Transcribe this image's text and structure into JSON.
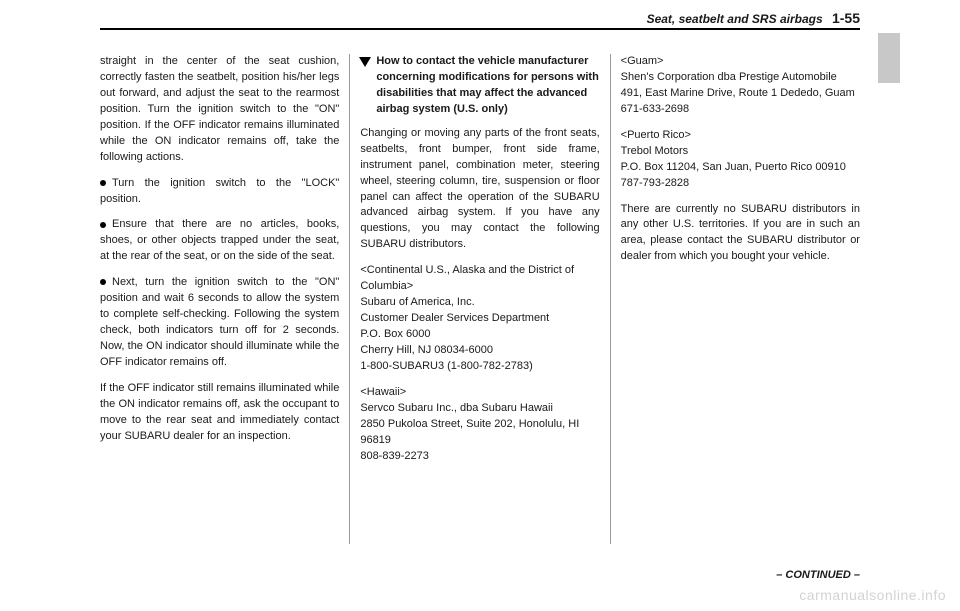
{
  "header": {
    "section": "Seat, seatbelt and SRS airbags",
    "page": "1-55"
  },
  "col1": {
    "p1": "straight in the center of the seat cushion, correctly fasten the seatbelt, position his/her legs out forward, and adjust the seat to the rearmost position. Turn the ignition switch to the \"ON\" position. If the OFF indicator remains illuminated while the ON indicator remains off, take the following actions.",
    "b1": "Turn the ignition switch to the \"LOCK\" position.",
    "b2": "Ensure that there are no articles, books, shoes, or other objects trapped under the seat, at the rear of the seat, or on the side of the seat.",
    "b3": "Next, turn the ignition switch to the \"ON\" position and wait 6 seconds to allow the system to complete self-checking. Following the system check, both indicators turn off for 2 seconds. Now, the ON indicator should illuminate while the OFF indicator remains off.",
    "p2": "If the OFF indicator still remains illuminated while the ON indicator remains off, ask the occupant to move to the rear seat and immediately contact your SUBARU dealer for an inspection."
  },
  "col2": {
    "heading": "How to contact the vehicle manufacturer concerning modifications for persons with disabilities that may affect the advanced airbag system (U.S. only)",
    "p1": "Changing or moving any parts of the front seats, seatbelts, front bumper, front side frame, instrument panel, combination meter, steering wheel, steering column, tire, suspension or floor panel can affect the operation of the SUBARU advanced airbag system. If you have any questions, you may contact the following SUBARU distributors.",
    "us_label": "<Continental U.S., Alaska and the District of Columbia>",
    "us1": "Subaru of America, Inc.",
    "us2": "Customer Dealer Services Department",
    "us3": "P.O. Box 6000",
    "us4": "Cherry Hill, NJ 08034-6000",
    "us5": "1-800-SUBARU3 (1-800-782-2783)",
    "hi_label": "<Hawaii>",
    "hi1": "Servco Subaru Inc., dba Subaru Hawaii",
    "hi2": "2850 Pukoloa Street, Suite 202, Honolulu, HI 96819",
    "hi3": "808-839-2273"
  },
  "col3": {
    "gu_label": "<Guam>",
    "gu1": "Shen's Corporation dba Prestige Automobile",
    "gu2": "491, East Marine Drive, Route 1 Dededo, Guam",
    "gu3": "671-633-2698",
    "pr_label": "<Puerto Rico>",
    "pr1": "Trebol Motors",
    "pr2": "P.O. Box 11204, San Juan, Puerto Rico 00910",
    "pr3": "787-793-2828",
    "p1": "There are currently no SUBARU distributors in any other U.S. territories. If you are in such an area, please contact the SUBARU distributor or dealer from which you bought your vehicle."
  },
  "footer": {
    "continued": "– CONTINUED –"
  },
  "watermark": "carmanualsonline.info"
}
